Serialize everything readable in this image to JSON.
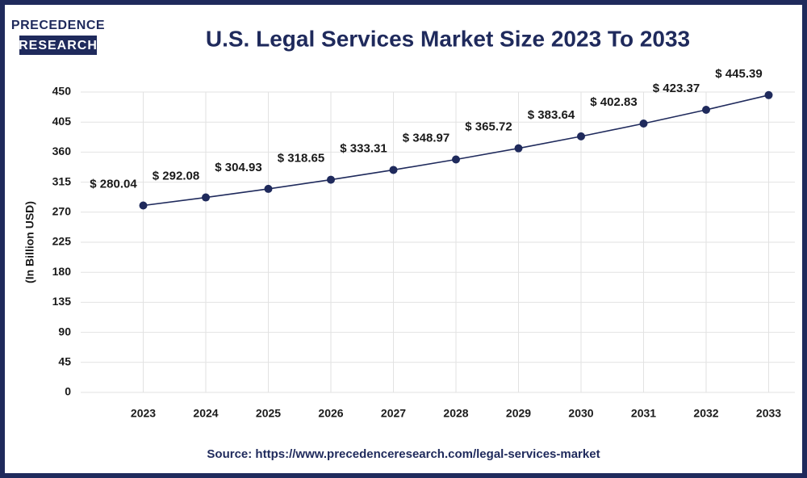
{
  "logo": {
    "line1": "PRECEDENCE",
    "line2": "RESEARCH"
  },
  "source": "Source: https://www.precedenceresearch.com/legal-services-market",
  "chart_data": {
    "type": "line",
    "title": "U.S. Legal Services Market Size 2023 To 2033",
    "y_label": "(In Billion USD)",
    "categories": [
      "2023",
      "2024",
      "2025",
      "2026",
      "2027",
      "2028",
      "2029",
      "2030",
      "2031",
      "2032",
      "2033"
    ],
    "values": [
      280.04,
      292.08,
      304.93,
      318.65,
      333.31,
      348.97,
      365.72,
      383.64,
      402.83,
      423.37,
      445.39
    ],
    "value_labels": [
      "$ 280.04",
      "$ 292.08",
      "$ 304.93",
      "$ 318.65",
      "$ 333.31",
      "$ 348.97",
      "$ 365.72",
      "$ 383.64",
      "$ 402.83",
      "$ 423.37",
      "$ 445.39"
    ],
    "color": "#1f2a5c",
    "ylim": [
      0,
      450
    ],
    "yticks": [
      0,
      45,
      90,
      135,
      180,
      225,
      270,
      315,
      360,
      405,
      450
    ],
    "grid": true
  }
}
